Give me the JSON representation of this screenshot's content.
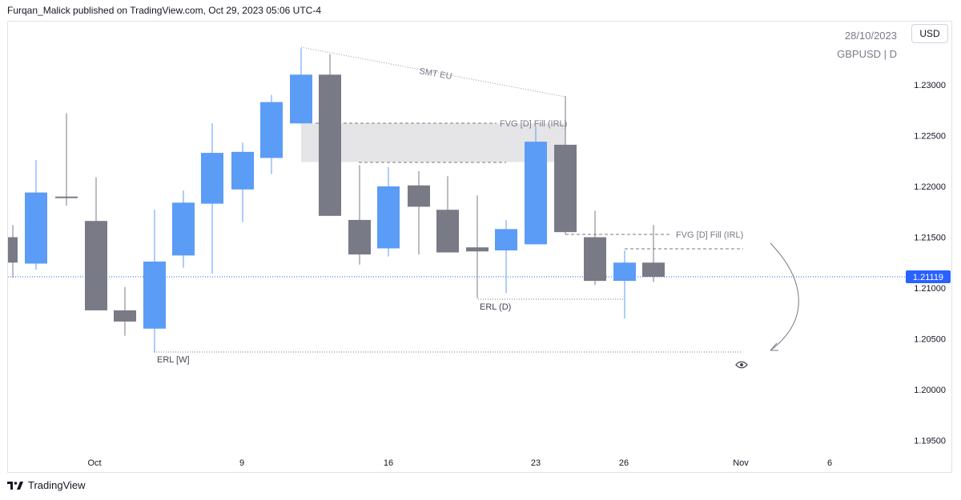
{
  "header": {
    "published_by": "Furqan_Malick published on TradingView.com, Oct 29, 2023 05:06 UTC-4"
  },
  "top_right": {
    "date": "28/10/2023",
    "symbol_interval": "GBPUSD | D",
    "currency_button": "USD"
  },
  "footer": {
    "brand": "TradingView"
  },
  "colors": {
    "bull": "#5b9cf6",
    "bear": "#787b86",
    "price_line": "#2962ff",
    "price_label_bg": "#2962ff",
    "fvg_box": "#e5e5e7"
  },
  "icons": {
    "eye": "eye-icon",
    "logo": "tradingview-logo-icon"
  },
  "chart_data": {
    "type": "candlestick",
    "symbol": "GBPUSD",
    "interval": "D",
    "ylim": [
      1.1915,
      1.2413
    ],
    "y_ticks": [
      "1.23000",
      "1.22500",
      "1.22000",
      "1.21500",
      "1.21000",
      "1.20500",
      "1.20000",
      "1.19500"
    ],
    "x_ticks": [
      {
        "label": "Oct",
        "date": "2023-10-02"
      },
      {
        "label": "9",
        "date": "2023-10-09"
      },
      {
        "label": "16",
        "date": "2023-10-16"
      },
      {
        "label": "23",
        "date": "2023-10-23"
      },
      {
        "label": "26",
        "date": "2023-10-26"
      },
      {
        "label": "Nov",
        "date": "2023-11-01"
      },
      {
        "label": "6",
        "date": "2023-11-06"
      }
    ],
    "last_price": "1.21119",
    "candles": [
      {
        "date": "2023-09-28",
        "open": 1.215,
        "high": 1.2162,
        "low": 1.211,
        "close": 1.2125
      },
      {
        "date": "2023-09-29",
        "open": 1.2124,
        "high": 1.2226,
        "low": 1.2118,
        "close": 1.2194
      },
      {
        "date": "2023-10-01",
        "open": 1.219,
        "high": 1.2272,
        "low": 1.2181,
        "close": 1.2189
      },
      {
        "date": "2023-10-02",
        "open": 1.2166,
        "high": 1.2209,
        "low": 1.2078,
        "close": 1.2078
      },
      {
        "date": "2023-10-03",
        "open": 1.2078,
        "high": 1.2101,
        "low": 1.2053,
        "close": 1.2067
      },
      {
        "date": "2023-10-04",
        "open": 1.206,
        "high": 1.2177,
        "low": 1.2037,
        "close": 1.2126
      },
      {
        "date": "2023-10-05",
        "open": 1.2132,
        "high": 1.2196,
        "low": 1.212,
        "close": 1.2184
      },
      {
        "date": "2023-10-06",
        "open": 1.2183,
        "high": 1.2262,
        "low": 1.2114,
        "close": 1.2233
      },
      {
        "date": "2023-10-08",
        "open": 1.2197,
        "high": 1.2243,
        "low": 1.2165,
        "close": 1.2234
      },
      {
        "date": "2023-10-09",
        "open": 1.2228,
        "high": 1.229,
        "low": 1.2212,
        "close": 1.2283
      },
      {
        "date": "2023-10-10",
        "open": 1.2262,
        "high": 1.2336,
        "low": 1.2262,
        "close": 1.231
      },
      {
        "date": "2023-10-11",
        "open": 1.231,
        "high": 1.233,
        "low": 1.2171,
        "close": 1.2171
      },
      {
        "date": "2023-10-12",
        "open": 1.2167,
        "high": 1.2221,
        "low": 1.2123,
        "close": 1.2133
      },
      {
        "date": "2023-10-13",
        "open": 1.2139,
        "high": 1.2219,
        "low": 1.2131,
        "close": 1.22
      },
      {
        "date": "2023-10-15",
        "open": 1.2201,
        "high": 1.2215,
        "low": 1.2133,
        "close": 1.218
      },
      {
        "date": "2023-10-16",
        "open": 1.2177,
        "high": 1.221,
        "low": 1.2135,
        "close": 1.2135
      },
      {
        "date": "2023-10-17",
        "open": 1.214,
        "high": 1.2191,
        "low": 1.209,
        "close": 1.2136
      },
      {
        "date": "2023-10-18",
        "open": 1.2137,
        "high": 1.2167,
        "low": 1.2095,
        "close": 1.2158
      },
      {
        "date": "2023-10-19",
        "open": 1.2143,
        "high": 1.2259,
        "low": 1.2143,
        "close": 1.2244
      },
      {
        "date": "2023-10-20",
        "open": 1.2241,
        "high": 1.2289,
        "low": 1.2153,
        "close": 1.2155
      },
      {
        "date": "2023-10-22",
        "open": 1.215,
        "high": 1.2176,
        "low": 1.2103,
        "close": 1.2107
      },
      {
        "date": "2023-10-23",
        "open": 1.2107,
        "high": 1.2137,
        "low": 1.207,
        "close": 1.2125
      },
      {
        "date": "2023-10-24",
        "open": 1.2125,
        "high": 1.2162,
        "low": 1.2106,
        "close": 1.2111
      }
    ],
    "annotations": {
      "smt_label": "SMT EU",
      "fvg_upper_label": "FVG [D] Fill (IRL)",
      "fvg_lower_label": "FVG [D] Fill (IRL)",
      "erl_daily_label": "ERL (D)",
      "erl_weekly_label": "ERL [W]",
      "fvg_box_range": [
        1.2224,
        1.2262
      ],
      "fvg_upper_level": 1.2262,
      "fvg_lower_level": 1.2153,
      "fvg_lower_dash2": 1.2138,
      "erl_daily_level": 1.2088,
      "erl_weekly_level": 1.2037
    }
  }
}
